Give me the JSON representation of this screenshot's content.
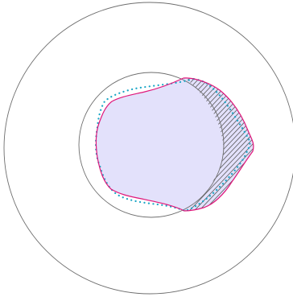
{
  "colors": {
    "background": "#ffffff",
    "circle_stroke": "#6e6e6e",
    "region_fill": "#e3e1fb",
    "boundary_stroke": "#e0177a",
    "dotted_stroke": "#1aa6c6",
    "hatch_stroke": "#5a5a5a"
  }
}
